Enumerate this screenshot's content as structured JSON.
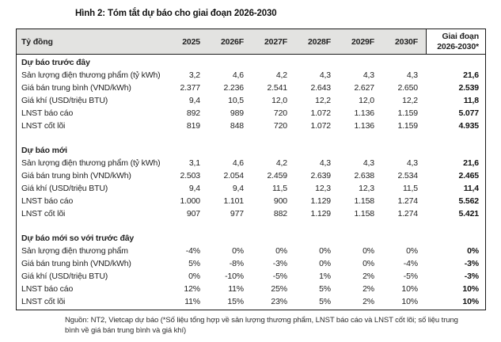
{
  "figure": {
    "title": "Hình 2: Tóm tắt dự báo cho giai đoạn 2026-2030",
    "source_note": "Nguồn: NT2, Vietcap dự báo (*Số liệu tổng hợp về sản lượng thương phẩm, LNST báo cáo và LNST cốt lõi; số liệu trung bình về giá bán trung bình và giá khí)"
  },
  "table": {
    "unit_header": "Tỷ đồng",
    "year_headers": [
      "2025",
      "2026F",
      "2027F",
      "2028F",
      "2029F",
      "2030F"
    ],
    "period_header_line1": "Giai đoạn",
    "period_header_line2": "2026-2030*",
    "sections": [
      {
        "title": "Dự báo trước đây",
        "rows": [
          {
            "label": "Sản lượng điện thương phẩm (tỷ kWh)",
            "values": [
              "3,2",
              "4,6",
              "4,2",
              "4,3",
              "4,3",
              "4,3"
            ],
            "total": "21,6"
          },
          {
            "label": "Giá bán trung bình (VND/kWh)",
            "values": [
              "2.377",
              "2.236",
              "2.541",
              "2.643",
              "2.627",
              "2.650"
            ],
            "total": "2.539"
          },
          {
            "label": "Giá khí (USD/triệu BTU)",
            "values": [
              "9,4",
              "10,5",
              "12,0",
              "12,2",
              "12,0",
              "12,2"
            ],
            "total": "11,8"
          },
          {
            "label": "LNST báo cáo",
            "values": [
              "892",
              "989",
              "720",
              "1.072",
              "1.136",
              "1.159"
            ],
            "total": "5.077"
          },
          {
            "label": "LNST cốt lõi",
            "values": [
              "819",
              "848",
              "720",
              "1.072",
              "1.136",
              "1.159"
            ],
            "total": "4.935"
          }
        ]
      },
      {
        "title": "Dự báo mới",
        "rows": [
          {
            "label": "Sản lượng điện thương phẩm (tỷ kWh)",
            "values": [
              "3,1",
              "4,6",
              "4,2",
              "4,3",
              "4,3",
              "4,3"
            ],
            "total": "21,6"
          },
          {
            "label": "Giá bán trung bình (VND/kWh)",
            "values": [
              "2.503",
              "2.054",
              "2.459",
              "2.639",
              "2.638",
              "2.534"
            ],
            "total": "2.465"
          },
          {
            "label": "Giá khí (USD/triệu BTU)",
            "values": [
              "9,4",
              "9,4",
              "11,5",
              "12,3",
              "12,3",
              "11,5"
            ],
            "total": "11,4"
          },
          {
            "label": "LNST báo cáo",
            "values": [
              "1.000",
              "1.101",
              "900",
              "1.129",
              "1.158",
              "1.274"
            ],
            "total": "5.562"
          },
          {
            "label": "LNST cốt lõi",
            "values": [
              "907",
              "977",
              "882",
              "1.129",
              "1.158",
              "1.274"
            ],
            "total": "5.421"
          }
        ]
      },
      {
        "title": "Dự báo mới so với trước đây",
        "rows": [
          {
            "label": "Sản lượng điện thương phẩm",
            "values": [
              "-4%",
              "0%",
              "0%",
              "0%",
              "0%",
              "0%"
            ],
            "total": "0%"
          },
          {
            "label": "Giá bán trung bình (VND/kWh)",
            "values": [
              "5%",
              "-8%",
              "-3%",
              "0%",
              "0%",
              "-4%"
            ],
            "total": "-3%"
          },
          {
            "label": "Giá khí (USD/triệu BTU)",
            "values": [
              "0%",
              "-10%",
              "-5%",
              "1%",
              "2%",
              "-5%"
            ],
            "total": "-3%"
          },
          {
            "label": "LNST báo cáo",
            "values": [
              "12%",
              "11%",
              "25%",
              "5%",
              "2%",
              "10%"
            ],
            "total": "10%"
          },
          {
            "label": "LNST cốt lõi",
            "values": [
              "11%",
              "15%",
              "23%",
              "5%",
              "2%",
              "10%"
            ],
            "total": "10%"
          }
        ]
      }
    ]
  },
  "colors": {
    "header_bg": "#e3e3e1",
    "border": "#1a1a1a",
    "text": "#222222"
  }
}
